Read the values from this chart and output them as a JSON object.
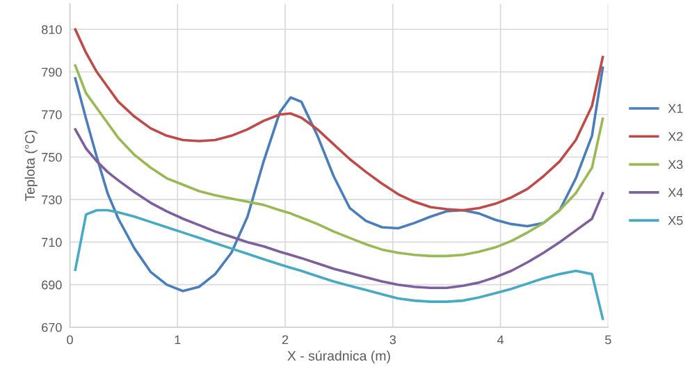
{
  "chart_data": {
    "type": "line",
    "xlabel": "X - súradnica (m)",
    "ylabel": "Teplota (°C)",
    "x": [
      0.05,
      0.15,
      0.25,
      0.35,
      0.45,
      0.6,
      0.75,
      0.9,
      1.05,
      1.2,
      1.35,
      1.5,
      1.65,
      1.8,
      1.95,
      2.05,
      2.15,
      2.3,
      2.45,
      2.6,
      2.75,
      2.9,
      3.05,
      3.2,
      3.35,
      3.5,
      3.65,
      3.8,
      3.95,
      4.1,
      4.25,
      4.4,
      4.55,
      4.7,
      4.85,
      4.95
    ],
    "series": [
      {
        "name": "X1",
        "color": "#4a7ebb",
        "values": [
          787,
          768,
          750,
          733,
          721,
          707,
          696,
          690,
          687,
          689,
          695,
          705,
          722,
          748,
          771,
          778,
          776,
          760,
          741,
          726,
          720,
          717,
          716.5,
          719,
          722,
          724.5,
          725,
          723.5,
          720.5,
          718.5,
          717.5,
          719,
          725,
          740,
          760,
          792
        ]
      },
      {
        "name": "X2",
        "color": "#be4b48",
        "values": [
          810,
          799,
          790,
          783,
          776,
          769,
          763.5,
          760,
          758,
          757.5,
          758,
          760,
          763,
          767,
          770,
          770.5,
          768.5,
          763,
          756,
          749,
          743,
          737.5,
          732.5,
          729,
          726.5,
          725.5,
          725,
          726,
          728,
          731,
          735,
          741,
          748,
          758,
          774,
          797
        ]
      },
      {
        "name": "X3",
        "color": "#98b954",
        "values": [
          793,
          780,
          773,
          766,
          759,
          751,
          745,
          740,
          737,
          734,
          732,
          730.5,
          729,
          727.5,
          725,
          723.5,
          721.5,
          718.5,
          715,
          712,
          709,
          706.5,
          705,
          704,
          703.5,
          703.5,
          704,
          705.5,
          707.5,
          710.5,
          714.5,
          719,
          725,
          733,
          745,
          768
        ]
      },
      {
        "name": "X4",
        "color": "#7d5fa0",
        "values": [
          763,
          754,
          748,
          743,
          739,
          733.5,
          728.5,
          724.5,
          721,
          718,
          715,
          712.5,
          710,
          708,
          705.5,
          704,
          702.5,
          700,
          697.5,
          695.5,
          693.5,
          691.5,
          690,
          689,
          688.5,
          688.5,
          689.5,
          691,
          693.5,
          696.5,
          700.5,
          705,
          710,
          715.5,
          721,
          733
        ]
      },
      {
        "name": "X5",
        "color": "#46aac5",
        "values": [
          697,
          723,
          725,
          725,
          724,
          722,
          719.5,
          717,
          714.5,
          712,
          709.5,
          707,
          704.5,
          702,
          699.5,
          698,
          696.5,
          694,
          691.5,
          689.5,
          687.5,
          685.5,
          683.5,
          682.5,
          682,
          682,
          682.5,
          684,
          686,
          688,
          690.5,
          693,
          695,
          696.5,
          695,
          674
        ]
      }
    ],
    "xlim": [
      0,
      5
    ],
    "xticks": [
      0,
      1,
      2,
      3,
      4,
      5
    ],
    "ylim": [
      670,
      822
    ],
    "yticks": [
      670,
      690,
      710,
      730,
      750,
      770,
      790,
      810
    ],
    "grid": true,
    "legend": "right",
    "marker": "none",
    "line_style": "solid"
  }
}
